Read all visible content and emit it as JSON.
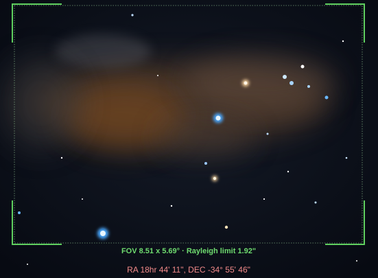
{
  "overlay": {
    "fov_text": "FOV 8.51 x 5.69° · Rayleigh limit 1.92\"",
    "coordinates": "RA 18hr 44' 11\", DEC -34° 55' 46\""
  }
}
